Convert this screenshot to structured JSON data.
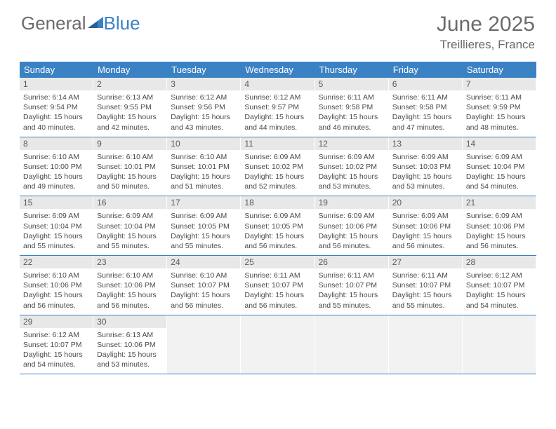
{
  "logo": {
    "text1": "General",
    "text2": "Blue"
  },
  "title": "June 2025",
  "location": "Treillieres, France",
  "colors": {
    "header_bg": "#3b82c4",
    "daynum_bg": "#e8e8e8",
    "blank_bg": "#f2f2f2",
    "text": "#4a4a4a",
    "title_text": "#6b6b6b"
  },
  "weekdays": [
    "Sunday",
    "Monday",
    "Tuesday",
    "Wednesday",
    "Thursday",
    "Friday",
    "Saturday"
  ],
  "weeks": [
    [
      {
        "n": "1",
        "sr": "6:14 AM",
        "ss": "9:54 PM",
        "dl": "15 hours and 40 minutes."
      },
      {
        "n": "2",
        "sr": "6:13 AM",
        "ss": "9:55 PM",
        "dl": "15 hours and 42 minutes."
      },
      {
        "n": "3",
        "sr": "6:12 AM",
        "ss": "9:56 PM",
        "dl": "15 hours and 43 minutes."
      },
      {
        "n": "4",
        "sr": "6:12 AM",
        "ss": "9:57 PM",
        "dl": "15 hours and 44 minutes."
      },
      {
        "n": "5",
        "sr": "6:11 AM",
        "ss": "9:58 PM",
        "dl": "15 hours and 46 minutes."
      },
      {
        "n": "6",
        "sr": "6:11 AM",
        "ss": "9:58 PM",
        "dl": "15 hours and 47 minutes."
      },
      {
        "n": "7",
        "sr": "6:11 AM",
        "ss": "9:59 PM",
        "dl": "15 hours and 48 minutes."
      }
    ],
    [
      {
        "n": "8",
        "sr": "6:10 AM",
        "ss": "10:00 PM",
        "dl": "15 hours and 49 minutes."
      },
      {
        "n": "9",
        "sr": "6:10 AM",
        "ss": "10:01 PM",
        "dl": "15 hours and 50 minutes."
      },
      {
        "n": "10",
        "sr": "6:10 AM",
        "ss": "10:01 PM",
        "dl": "15 hours and 51 minutes."
      },
      {
        "n": "11",
        "sr": "6:09 AM",
        "ss": "10:02 PM",
        "dl": "15 hours and 52 minutes."
      },
      {
        "n": "12",
        "sr": "6:09 AM",
        "ss": "10:02 PM",
        "dl": "15 hours and 53 minutes."
      },
      {
        "n": "13",
        "sr": "6:09 AM",
        "ss": "10:03 PM",
        "dl": "15 hours and 53 minutes."
      },
      {
        "n": "14",
        "sr": "6:09 AM",
        "ss": "10:04 PM",
        "dl": "15 hours and 54 minutes."
      }
    ],
    [
      {
        "n": "15",
        "sr": "6:09 AM",
        "ss": "10:04 PM",
        "dl": "15 hours and 55 minutes."
      },
      {
        "n": "16",
        "sr": "6:09 AM",
        "ss": "10:04 PM",
        "dl": "15 hours and 55 minutes."
      },
      {
        "n": "17",
        "sr": "6:09 AM",
        "ss": "10:05 PM",
        "dl": "15 hours and 55 minutes."
      },
      {
        "n": "18",
        "sr": "6:09 AM",
        "ss": "10:05 PM",
        "dl": "15 hours and 56 minutes."
      },
      {
        "n": "19",
        "sr": "6:09 AM",
        "ss": "10:06 PM",
        "dl": "15 hours and 56 minutes."
      },
      {
        "n": "20",
        "sr": "6:09 AM",
        "ss": "10:06 PM",
        "dl": "15 hours and 56 minutes."
      },
      {
        "n": "21",
        "sr": "6:09 AM",
        "ss": "10:06 PM",
        "dl": "15 hours and 56 minutes."
      }
    ],
    [
      {
        "n": "22",
        "sr": "6:10 AM",
        "ss": "10:06 PM",
        "dl": "15 hours and 56 minutes."
      },
      {
        "n": "23",
        "sr": "6:10 AM",
        "ss": "10:06 PM",
        "dl": "15 hours and 56 minutes."
      },
      {
        "n": "24",
        "sr": "6:10 AM",
        "ss": "10:07 PM",
        "dl": "15 hours and 56 minutes."
      },
      {
        "n": "25",
        "sr": "6:11 AM",
        "ss": "10:07 PM",
        "dl": "15 hours and 56 minutes."
      },
      {
        "n": "26",
        "sr": "6:11 AM",
        "ss": "10:07 PM",
        "dl": "15 hours and 55 minutes."
      },
      {
        "n": "27",
        "sr": "6:11 AM",
        "ss": "10:07 PM",
        "dl": "15 hours and 55 minutes."
      },
      {
        "n": "28",
        "sr": "6:12 AM",
        "ss": "10:07 PM",
        "dl": "15 hours and 54 minutes."
      }
    ],
    [
      {
        "n": "29",
        "sr": "6:12 AM",
        "ss": "10:07 PM",
        "dl": "15 hours and 54 minutes."
      },
      {
        "n": "30",
        "sr": "6:13 AM",
        "ss": "10:06 PM",
        "dl": "15 hours and 53 minutes."
      },
      null,
      null,
      null,
      null,
      null
    ]
  ],
  "labels": {
    "sunrise": "Sunrise:",
    "sunset": "Sunset:",
    "daylight": "Daylight:"
  }
}
